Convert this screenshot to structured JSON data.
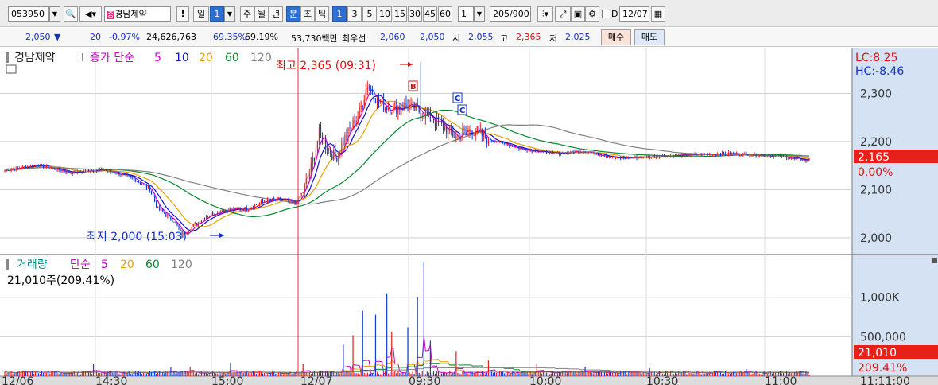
{
  "toolbar": {
    "stock_code": "053950",
    "stock_name": "경남제약",
    "period_unit": "일",
    "period_value": "1",
    "periods": [
      "주",
      "월",
      "년",
      "분",
      "초",
      "틱"
    ],
    "active_period": "분",
    "minute_buttons": [
      "1",
      "3",
      "5",
      "10",
      "15",
      "30",
      "45",
      "60"
    ],
    "active_minute": "1",
    "interval_value": "1",
    "count_text": "205/900",
    "d_label": "D",
    "date_value": "12/07"
  },
  "info": {
    "price": "2,050",
    "change": "20",
    "change_rate": "-0.97%",
    "volume": "24,626,763",
    "ratio_a": "69.35%",
    "ratio_b": "69.19%",
    "amount": "53,730백만",
    "prior_label": "최우선",
    "ask": "2,060",
    "bid": "2,050",
    "open_label": "시",
    "open": "2,055",
    "high_label": "고",
    "high": "2,365",
    "low_label": "저",
    "low": "2,025",
    "buy_label": "매수",
    "sell_label": "매도"
  },
  "price_panel": {
    "stock_name": "경남제약",
    "ma_title": "종가 단순",
    "ma_periods": [
      "5",
      "10",
      "20",
      "60",
      "120"
    ],
    "ma_colors": [
      "#cc00cc",
      "#1010cc",
      "#e8a000",
      "#008a2e",
      "#808080"
    ],
    "high_annotation": "최고 2,365 (09:31)",
    "low_annotation": "최저 2,000 (15:03)",
    "lc": "LC:8.25",
    "hc": "HC:-8.46",
    "current_price": "2,165",
    "current_pct": "0.00%",
    "marker_b": "B",
    "marker_c1": "C",
    "marker_c2": "C"
  },
  "volume_panel": {
    "title": "거래량",
    "ma_title": "단순",
    "ma_periods": [
      "5",
      "20",
      "60",
      "120"
    ],
    "summary": "21,010주(209.41%)",
    "current_volume": "21,010",
    "current_pct": "209.41%"
  },
  "x_axis": {
    "labels": [
      "12/06",
      "14:30",
      "15:00",
      "12/07",
      "09:30",
      "10:00",
      "10:30",
      "11:00",
      "11:11:00"
    ]
  },
  "chart_data": [
    {
      "type": "candlestick",
      "title": "경남제약",
      "ylim": [
        1965,
        2395
      ],
      "y_ticks": [
        2000,
        2100,
        2200,
        2300
      ],
      "y_tick_labels": [
        "2,000",
        "2,100",
        "2,200",
        "2,300"
      ],
      "price_anchors": [
        [
          0,
          2140
        ],
        [
          20,
          2152
        ],
        [
          40,
          2135
        ],
        [
          60,
          2142
        ],
        [
          70,
          2133
        ],
        [
          80,
          2123
        ],
        [
          90,
          2100
        ],
        [
          95,
          2060
        ],
        [
          105,
          2035
        ],
        [
          110,
          2005
        ],
        [
          115,
          2020
        ],
        [
          125,
          2045
        ],
        [
          135,
          2058
        ],
        [
          150,
          2060
        ],
        [
          160,
          2075
        ],
        [
          170,
          2080
        ],
        [
          180,
          2070
        ],
        [
          185,
          2095
        ],
        [
          190,
          2145
        ],
        [
          195,
          2215
        ],
        [
          205,
          2165
        ],
        [
          210,
          2200
        ],
        [
          220,
          2260
        ],
        [
          225,
          2320
        ],
        [
          232,
          2280
        ],
        [
          240,
          2270
        ],
        [
          250,
          2275
        ],
        [
          260,
          2258
        ],
        [
          270,
          2235
        ],
        [
          280,
          2210
        ],
        [
          290,
          2225
        ],
        [
          300,
          2205
        ],
        [
          320,
          2185
        ],
        [
          340,
          2175
        ],
        [
          360,
          2180
        ],
        [
          380,
          2165
        ],
        [
          410,
          2170
        ],
        [
          450,
          2175
        ],
        [
          480,
          2170
        ],
        [
          500,
          2158
        ]
      ],
      "high": {
        "label": "2,365",
        "time": "09:31"
      },
      "low": {
        "label": "2,000",
        "time": "15:03"
      },
      "last": 2165
    },
    {
      "type": "bar",
      "title": "거래량",
      "ylim": [
        0,
        1450000
      ],
      "y_ticks": [
        500000,
        1000000
      ],
      "y_tick_labels": [
        "500,000",
        "1,000K"
      ],
      "spikes": [
        [
          55,
          160000
        ],
        [
          103,
          110000
        ],
        [
          115,
          120000
        ],
        [
          140,
          170000
        ],
        [
          185,
          160000
        ],
        [
          210,
          400000
        ],
        [
          216,
          520000
        ],
        [
          222,
          830000
        ],
        [
          230,
          780000
        ],
        [
          237,
          1050000
        ],
        [
          240,
          560000
        ],
        [
          250,
          620000
        ],
        [
          256,
          1000000
        ],
        [
          260,
          1450000
        ],
        [
          264,
          450000
        ],
        [
          280,
          320000
        ],
        [
          300,
          200000
        ],
        [
          330,
          160000
        ],
        [
          360,
          120000
        ],
        [
          400,
          100000
        ],
        [
          460,
          90000
        ]
      ],
      "last": 21010
    }
  ]
}
